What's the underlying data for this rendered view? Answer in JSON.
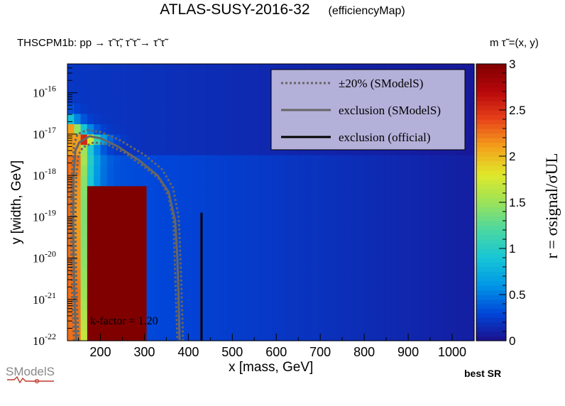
{
  "header": {
    "title": "ATLAS-SUSY-2016-32",
    "subtitle": "(efficiencyMap)",
    "process": "THSCPM1b: pp  → τ̃ τ̃, τ̃ τ̃ → τ̃ τ̃",
    "mass_label": "m τ̃ =(x, y)"
  },
  "annotation": {
    "kfactor": "k-factor = 1.20",
    "best_sr": "best SR"
  },
  "logo": {
    "text": "SModelS",
    "icon": "smodels-logo-icon"
  },
  "chart_data": {
    "type": "heatmap",
    "xlabel": "x [mass, GeV]",
    "ylabel": "y [width, GeV]",
    "zlabel": "r = σsignal/σUL",
    "x_range": [
      125,
      1050
    ],
    "y_range_log10": [
      -22,
      -15.3
    ],
    "y_scale": "log",
    "z_range": [
      0,
      3
    ],
    "x_ticks": [
      200,
      300,
      400,
      500,
      600,
      700,
      800,
      900,
      1000
    ],
    "y_ticks": [
      "10^-16",
      "10^-17",
      "10^-18",
      "10^-19",
      "10^-20",
      "10^-21",
      "10^-22"
    ],
    "z_ticks": [
      "0",
      "0.5",
      "1",
      "1.5",
      "2",
      "2.5",
      "3"
    ],
    "colorscale": [
      "#1c0f8c",
      "#0046d9",
      "#0096e6",
      "#17c6d6",
      "#4ad7a2",
      "#9be35a",
      "#e0e82a",
      "#f4a21b",
      "#e8431a",
      "#b8070b",
      "#800000"
    ],
    "legend": {
      "position": "top-right",
      "entries": [
        {
          "label": "±20% (SModelS)",
          "style": "dotted",
          "color": "#666666"
        },
        {
          "label": "exclusion (SModelS)",
          "style": "solid",
          "color": "#666666"
        },
        {
          "label": "exclusion (official)",
          "style": "solid",
          "color": "#000000"
        }
      ]
    },
    "exclusion_smodels": [
      [
        145,
        -22
      ],
      [
        141,
        -21
      ],
      [
        139,
        -20
      ],
      [
        138,
        -19
      ],
      [
        139,
        -18
      ],
      [
        143,
        -17.4
      ],
      [
        152,
        -17.2
      ],
      [
        175,
        -17.05
      ],
      [
        200,
        -17.1
      ],
      [
        240,
        -17.3
      ],
      [
        290,
        -17.65
      ],
      [
        330,
        -18.0
      ],
      [
        355,
        -18.4
      ],
      [
        370,
        -19.1
      ],
      [
        375,
        -20
      ],
      [
        378,
        -21
      ],
      [
        380,
        -22
      ]
    ],
    "exclusion_smodels_plus20": [
      [
        150,
        -22
      ],
      [
        146,
        -21
      ],
      [
        144,
        -20
      ],
      [
        143,
        -19
      ],
      [
        145,
        -18
      ],
      [
        150,
        -17.5
      ],
      [
        160,
        -17.32
      ],
      [
        185,
        -17.2
      ],
      [
        215,
        -17.25
      ],
      [
        255,
        -17.45
      ],
      [
        300,
        -17.8
      ],
      [
        335,
        -18.1
      ],
      [
        355,
        -18.5
      ],
      [
        366,
        -19.1
      ],
      [
        369,
        -20
      ],
      [
        372,
        -21
      ],
      [
        375,
        -22
      ]
    ],
    "exclusion_smodels_minus20": [
      [
        140,
        -22
      ],
      [
        136,
        -21
      ],
      [
        134,
        -20
      ],
      [
        133,
        -19
      ],
      [
        135,
        -18
      ],
      [
        140,
        -17.25
      ],
      [
        148,
        -17.0
      ],
      [
        170,
        -16.9
      ],
      [
        200,
        -16.95
      ],
      [
        245,
        -17.15
      ],
      [
        300,
        -17.5
      ],
      [
        340,
        -17.85
      ],
      [
        365,
        -18.3
      ],
      [
        378,
        -19.0
      ],
      [
        382,
        -20
      ],
      [
        385,
        -21
      ],
      [
        388,
        -22
      ]
    ],
    "exclusion_official": [
      [
        430,
        -22
      ],
      [
        430,
        -21
      ],
      [
        430,
        -20
      ],
      [
        430,
        -19.1
      ],
      [
        430,
        -18.9
      ]
    ]
  }
}
